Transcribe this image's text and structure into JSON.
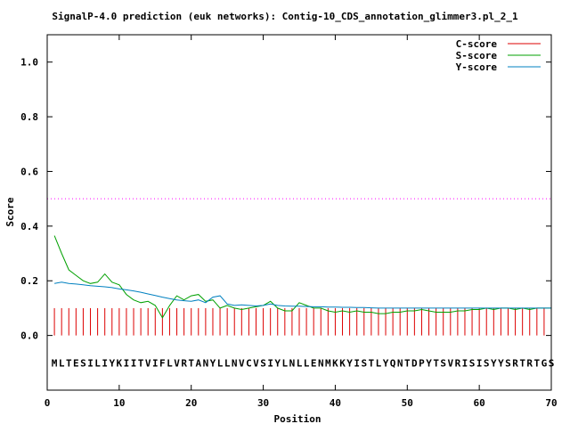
{
  "chart_data": {
    "type": "line",
    "title": "SignalP-4.0 prediction (euk networks): Contig-10_CDS_annotation_glimmer3.pl_2_1",
    "xlabel": "Position",
    "ylabel": "Score",
    "xlim": [
      0,
      70
    ],
    "ylim": [
      -0.2,
      1.1
    ],
    "xticks": [
      "0",
      "10",
      "20",
      "30",
      "40",
      "50",
      "60",
      "70"
    ],
    "yticks": [
      "0.0",
      "0.2",
      "0.4",
      "0.6",
      "0.8",
      "1.0"
    ],
    "threshold": 0.5,
    "threshold_color": "#ff00ff",
    "legend_position": "top-right",
    "sequence": "MLTESILIYKIITVIFLVRTANYLLNVCVSIYLNLLENMKKYISTLYQNTDPYTSVRISISYYSRTRTGS",
    "sequence_y": -0.1,
    "series": [
      {
        "name": "C-score",
        "color": "#dd0000",
        "style": "impulse",
        "x": [
          1,
          2,
          3,
          4,
          5,
          6,
          7,
          8,
          9,
          10,
          11,
          12,
          13,
          14,
          15,
          16,
          17,
          18,
          19,
          20,
          21,
          22,
          23,
          24,
          25,
          26,
          27,
          28,
          29,
          30,
          31,
          32,
          33,
          34,
          35,
          36,
          37,
          38,
          39,
          40,
          41,
          42,
          43,
          44,
          45,
          46,
          47,
          48,
          49,
          50,
          51,
          52,
          53,
          54,
          55,
          56,
          57,
          58,
          59,
          60,
          61,
          62,
          63,
          64,
          65,
          66,
          67,
          68,
          69,
          70
        ],
        "values": [
          0.1,
          0.1,
          0.1,
          0.1,
          0.1,
          0.1,
          0.1,
          0.1,
          0.1,
          0.1,
          0.1,
          0.1,
          0.1,
          0.1,
          0.1,
          0.1,
          0.1,
          0.1,
          0.1,
          0.1,
          0.1,
          0.1,
          0.1,
          0.1,
          0.1,
          0.1,
          0.1,
          0.1,
          0.1,
          0.1,
          0.1,
          0.1,
          0.1,
          0.1,
          0.1,
          0.1,
          0.1,
          0.1,
          0.1,
          0.1,
          0.1,
          0.1,
          0.1,
          0.1,
          0.1,
          0.1,
          0.1,
          0.1,
          0.1,
          0.1,
          0.1,
          0.1,
          0.1,
          0.1,
          0.1,
          0.1,
          0.1,
          0.1,
          0.1,
          0.1,
          0.1,
          0.1,
          0.1,
          0.1,
          0.1,
          0.1,
          0.1,
          0.1,
          0.1,
          0.1
        ]
      },
      {
        "name": "S-score",
        "color": "#00a000",
        "style": "line",
        "x": [
          1,
          2,
          3,
          4,
          5,
          6,
          7,
          8,
          9,
          10,
          11,
          12,
          13,
          14,
          15,
          16,
          17,
          18,
          19,
          20,
          21,
          22,
          23,
          24,
          25,
          26,
          27,
          28,
          29,
          30,
          31,
          32,
          33,
          34,
          35,
          36,
          37,
          38,
          39,
          40,
          41,
          42,
          43,
          44,
          45,
          46,
          47,
          48,
          49,
          50,
          51,
          52,
          53,
          54,
          55,
          56,
          57,
          58,
          59,
          60,
          61,
          62,
          63,
          64,
          65,
          66,
          67,
          68,
          69,
          70
        ],
        "values": [
          0.365,
          0.3,
          0.24,
          0.22,
          0.2,
          0.19,
          0.195,
          0.225,
          0.195,
          0.185,
          0.15,
          0.13,
          0.12,
          0.125,
          0.11,
          0.065,
          0.11,
          0.145,
          0.13,
          0.145,
          0.15,
          0.125,
          0.13,
          0.1,
          0.11,
          0.1,
          0.095,
          0.1,
          0.105,
          0.11,
          0.125,
          0.1,
          0.09,
          0.09,
          0.12,
          0.11,
          0.1,
          0.1,
          0.09,
          0.085,
          0.09,
          0.085,
          0.09,
          0.085,
          0.085,
          0.08,
          0.08,
          0.085,
          0.085,
          0.09,
          0.09,
          0.095,
          0.09,
          0.085,
          0.085,
          0.085,
          0.09,
          0.09,
          0.095,
          0.095,
          0.1,
          0.095,
          0.1,
          0.1,
          0.095,
          0.1,
          0.095,
          0.1,
          0.1,
          0.1
        ]
      },
      {
        "name": "Y-score",
        "color": "#0080c0",
        "style": "line",
        "x": [
          1,
          2,
          3,
          4,
          5,
          6,
          7,
          8,
          9,
          10,
          11,
          12,
          13,
          14,
          15,
          16,
          17,
          18,
          19,
          20,
          21,
          22,
          23,
          24,
          25,
          26,
          27,
          28,
          29,
          30,
          31,
          32,
          33,
          34,
          35,
          36,
          37,
          38,
          39,
          40,
          41,
          42,
          43,
          44,
          45,
          46,
          47,
          48,
          49,
          50,
          51,
          52,
          53,
          54,
          55,
          56,
          57,
          58,
          59,
          60,
          61,
          62,
          63,
          64,
          65,
          66,
          67,
          68,
          69,
          70
        ],
        "values": [
          0.19,
          0.195,
          0.19,
          0.188,
          0.185,
          0.182,
          0.18,
          0.178,
          0.175,
          0.17,
          0.167,
          0.163,
          0.158,
          0.152,
          0.146,
          0.14,
          0.135,
          0.13,
          0.127,
          0.125,
          0.13,
          0.12,
          0.14,
          0.145,
          0.115,
          0.11,
          0.112,
          0.11,
          0.108,
          0.11,
          0.115,
          0.11,
          0.108,
          0.107,
          0.107,
          0.106,
          0.105,
          0.105,
          0.104,
          0.104,
          0.103,
          0.103,
          0.102,
          0.102,
          0.101,
          0.1,
          0.1,
          0.1,
          0.1,
          0.1,
          0.1,
          0.1,
          0.1,
          0.1,
          0.1,
          0.1,
          0.1,
          0.1,
          0.1,
          0.1,
          0.1,
          0.1,
          0.1,
          0.1,
          0.1,
          0.1,
          0.1,
          0.1,
          0.1,
          0.1
        ]
      }
    ]
  }
}
